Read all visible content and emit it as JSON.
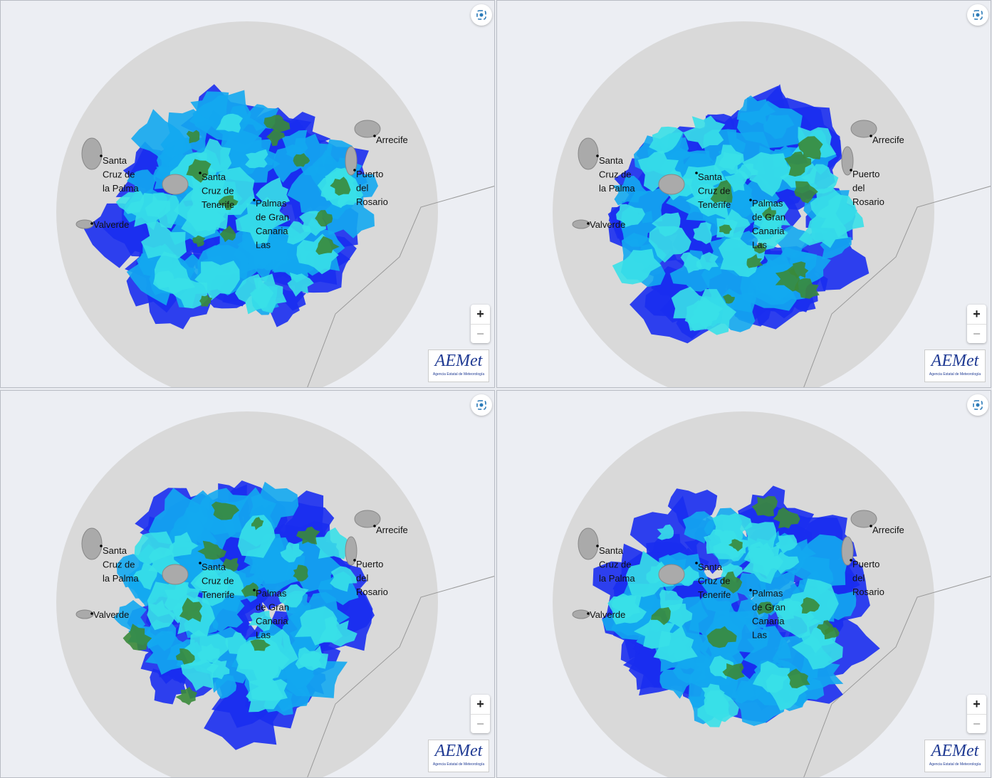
{
  "panels": [
    {
      "places": [
        {
          "lines": [
            "Santa",
            "Cruz de",
            "la Palma"
          ]
        },
        {
          "lines": [
            "Valverde"
          ]
        },
        {
          "lines": [
            "Santa",
            "Cruz de",
            "Tenerife"
          ]
        },
        {
          "lines": [
            "Palmas",
            "de Gran",
            "Canaria",
            "Las"
          ]
        },
        {
          "lines": [
            "Arrecife"
          ]
        },
        {
          "lines": [
            "Puerto",
            "del",
            "Rosario"
          ]
        }
      ],
      "zoom_in": "+",
      "zoom_out": "−",
      "logo": "AEMet",
      "logo_caption": "Agencia Estatal de Meteorología"
    },
    {
      "places": [
        {
          "lines": [
            "Santa",
            "Cruz de",
            "la Palma"
          ]
        },
        {
          "lines": [
            "Valverde"
          ]
        },
        {
          "lines": [
            "Santa",
            "Cruz de",
            "Tenerife"
          ]
        },
        {
          "lines": [
            "Palmas",
            "de Gran",
            "Canaria",
            "Las"
          ]
        },
        {
          "lines": [
            "Arrecife"
          ]
        },
        {
          "lines": [
            "Puerto",
            "del",
            "Rosario"
          ]
        }
      ],
      "zoom_in": "+",
      "zoom_out": "−",
      "logo": "AEMet",
      "logo_caption": "Agencia Estatal de Meteorología"
    },
    {
      "places": [
        {
          "lines": [
            "Santa",
            "Cruz de",
            "la Palma"
          ]
        },
        {
          "lines": [
            "Valverde"
          ]
        },
        {
          "lines": [
            "Santa",
            "Cruz de",
            "Tenerife"
          ]
        },
        {
          "lines": [
            "Palmas",
            "de Gran",
            "Canaria",
            "Las"
          ]
        },
        {
          "lines": [
            "Arrecife"
          ]
        },
        {
          "lines": [
            "Puerto",
            "del",
            "Rosario"
          ]
        }
      ],
      "zoom_in": "+",
      "zoom_out": "−",
      "logo": "AEMet",
      "logo_caption": "Agencia Estatal de Meteorología"
    },
    {
      "places": [
        {
          "lines": [
            "Santa",
            "Cruz de",
            "la Palma"
          ]
        },
        {
          "lines": [
            "Valverde"
          ]
        },
        {
          "lines": [
            "Santa",
            "Cruz de",
            "Tenerife"
          ]
        },
        {
          "lines": [
            "Palmas",
            "de Gran",
            "Canaria",
            "Las"
          ]
        },
        {
          "lines": [
            "Arrecife"
          ]
        },
        {
          "lines": [
            "Puerto",
            "del",
            "Rosario"
          ]
        }
      ],
      "zoom_in": "+",
      "zoom_out": "−",
      "logo": "AEMet",
      "logo_caption": "Agencia Estatal de Meteorología"
    }
  ]
}
